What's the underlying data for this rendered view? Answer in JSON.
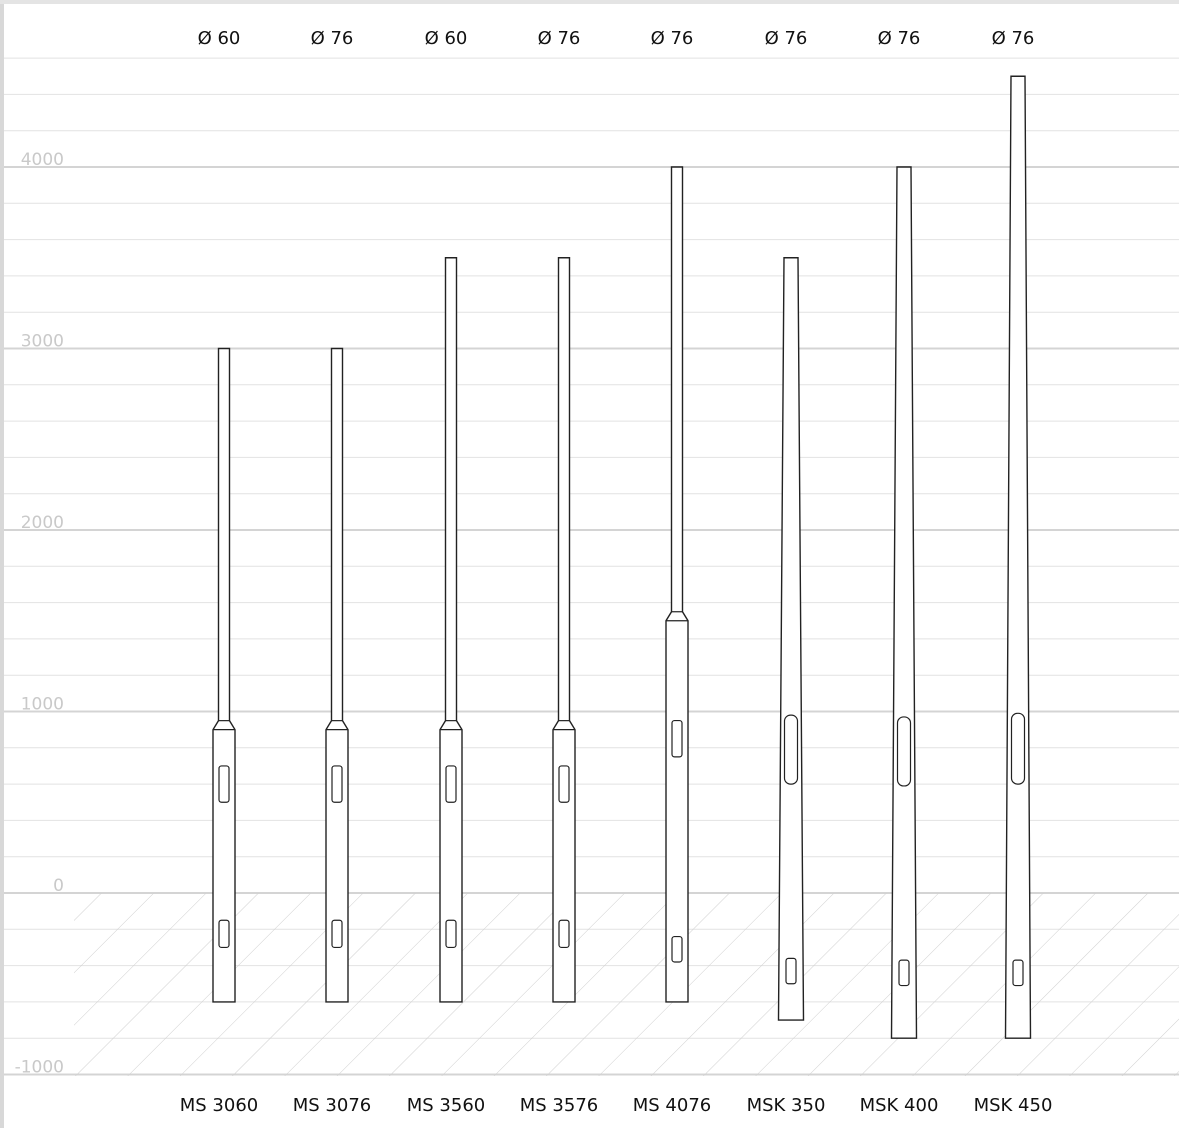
{
  "chart_data": {
    "type": "diagram",
    "y_axis": {
      "ticks": [
        "4000",
        "3000",
        "2000",
        "1000",
        "0",
        "-1000"
      ],
      "min": -1000,
      "max": 4600,
      "ground_level": 0
    },
    "poles": [
      {
        "name": "MS 3060",
        "diameter": "Ø 60",
        "top": 3000,
        "bottom": -600,
        "joint": 900,
        "shape": "stepped",
        "doors": [
          [
            500,
            700
          ],
          [
            -300,
            -150
          ]
        ]
      },
      {
        "name": "MS 3076",
        "diameter": "Ø 76",
        "top": 3000,
        "bottom": -600,
        "joint": 900,
        "shape": "stepped",
        "doors": [
          [
            500,
            700
          ],
          [
            -300,
            -150
          ]
        ]
      },
      {
        "name": "MS 3560",
        "diameter": "Ø 60",
        "top": 3500,
        "bottom": -600,
        "joint": 900,
        "shape": "stepped",
        "doors": [
          [
            500,
            700
          ],
          [
            -300,
            -150
          ]
        ]
      },
      {
        "name": "MS 3576",
        "diameter": "Ø 76",
        "top": 3500,
        "bottom": -600,
        "joint": 900,
        "shape": "stepped",
        "doors": [
          [
            500,
            700
          ],
          [
            -300,
            -150
          ]
        ]
      },
      {
        "name": "MS 4076",
        "diameter": "Ø 76",
        "top": 4000,
        "bottom": -600,
        "joint": 1500,
        "shape": "stepped",
        "doors": [
          [
            750,
            950
          ],
          [
            -380,
            -240
          ]
        ]
      },
      {
        "name": "MSK 350",
        "diameter": "Ø 76",
        "top": 3500,
        "bottom": -700,
        "shape": "conical",
        "doors": [
          [
            600,
            980
          ],
          [
            -500,
            -360
          ]
        ]
      },
      {
        "name": "MSK 400",
        "diameter": "Ø 76",
        "top": 4000,
        "bottom": -800,
        "shape": "conical",
        "doors": [
          [
            590,
            970
          ],
          [
            -510,
            -370
          ]
        ]
      },
      {
        "name": "MSK 450",
        "diameter": "Ø 76",
        "top": 4500,
        "bottom": -800,
        "shape": "conical",
        "doors": [
          [
            600,
            990
          ],
          [
            -510,
            -370
          ]
        ]
      }
    ]
  }
}
